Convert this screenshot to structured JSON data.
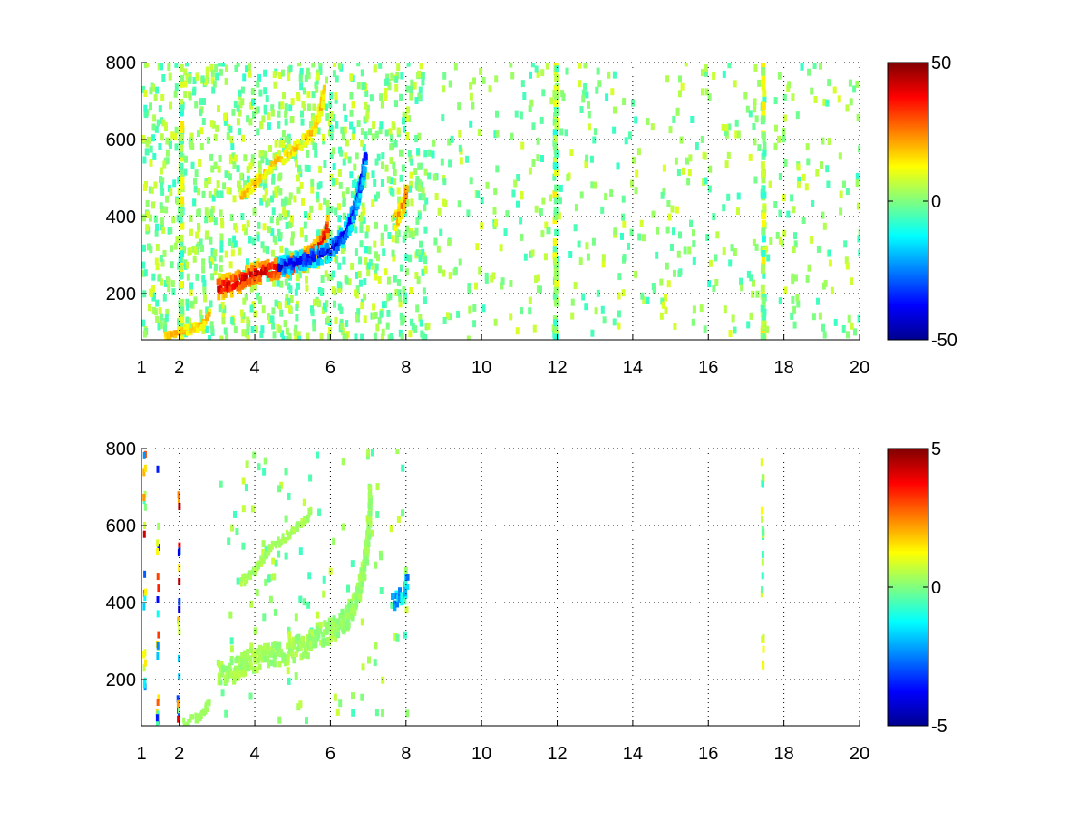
{
  "chart_data": [
    {
      "type": "heatmap",
      "panel": "top",
      "xlim": [
        1,
        20
      ],
      "ylim": [
        80,
        800
      ],
      "x_ticks": [
        1,
        2,
        4,
        6,
        8,
        10,
        12,
        14,
        16,
        18,
        20
      ],
      "y_ticks": [
        200,
        400,
        600,
        800
      ],
      "grid": true,
      "colorbar": {
        "min": -50,
        "max": 50,
        "ticks": [
          50,
          0,
          -50
        ],
        "colormap": "jet"
      },
      "features": {
        "positive_ridge": [
          [
            3.0,
            215
          ],
          [
            3.4,
            225
          ],
          [
            3.8,
            245
          ],
          [
            4.2,
            258
          ],
          [
            4.6,
            265
          ],
          [
            5.0,
            275
          ],
          [
            5.3,
            288
          ],
          [
            5.6,
            310
          ],
          [
            5.8,
            345
          ],
          [
            5.9,
            380
          ]
        ],
        "negative_ridge": [
          [
            4.6,
            268
          ],
          [
            5.0,
            280
          ],
          [
            5.4,
            292
          ],
          [
            5.8,
            302
          ],
          [
            6.1,
            325
          ],
          [
            6.4,
            365
          ],
          [
            6.6,
            420
          ],
          [
            6.8,
            500
          ],
          [
            6.9,
            570
          ]
        ],
        "upper_branch": [
          [
            3.6,
            450
          ],
          [
            4.0,
            490
          ],
          [
            4.4,
            540
          ],
          [
            4.8,
            560
          ],
          [
            5.2,
            590
          ],
          [
            5.5,
            620
          ],
          [
            5.7,
            680
          ],
          [
            5.8,
            740
          ]
        ],
        "lower_branch": [
          [
            1.6,
            90
          ],
          [
            2.0,
            100
          ],
          [
            2.5,
            115
          ],
          [
            2.8,
            150
          ]
        ],
        "blob": [
          [
            7.7,
            390
          ],
          [
            7.9,
            430
          ],
          [
            8.0,
            470
          ]
        ],
        "vertical_bands": [
          2.0,
          11.9,
          17.4
        ]
      }
    },
    {
      "type": "heatmap",
      "panel": "bottom",
      "xlim": [
        1,
        20
      ],
      "ylim": [
        80,
        800
      ],
      "x_ticks": [
        1,
        2,
        4,
        6,
        8,
        10,
        12,
        14,
        16,
        18,
        20
      ],
      "y_ticks": [
        200,
        400,
        600,
        800
      ],
      "grid": true,
      "colorbar": {
        "min": -5,
        "max": 5,
        "ticks": [
          5,
          0,
          -5
        ],
        "colormap": "jet"
      },
      "features": {
        "main_ridge": [
          [
            3.0,
            215
          ],
          [
            3.4,
            225
          ],
          [
            3.8,
            245
          ],
          [
            4.2,
            258
          ],
          [
            4.6,
            265
          ],
          [
            5.0,
            275
          ],
          [
            5.3,
            288
          ],
          [
            5.6,
            310
          ],
          [
            6.0,
            330
          ],
          [
            6.4,
            360
          ],
          [
            6.7,
            420
          ],
          [
            6.9,
            520
          ],
          [
            7.0,
            620
          ],
          [
            7.0,
            700
          ]
        ],
        "upper_branch": [
          [
            3.6,
            450
          ],
          [
            4.0,
            490
          ],
          [
            4.4,
            540
          ],
          [
            4.8,
            570
          ],
          [
            5.2,
            600
          ],
          [
            5.5,
            640
          ]
        ],
        "lower_branch": [
          [
            2.1,
            90
          ],
          [
            2.5,
            100
          ],
          [
            2.8,
            150
          ]
        ],
        "blob": [
          [
            7.6,
            400
          ],
          [
            7.9,
            420
          ],
          [
            8.0,
            460
          ]
        ],
        "vertical_bands": [
          1.05,
          1.4,
          1.95,
          17.4
        ]
      }
    }
  ]
}
